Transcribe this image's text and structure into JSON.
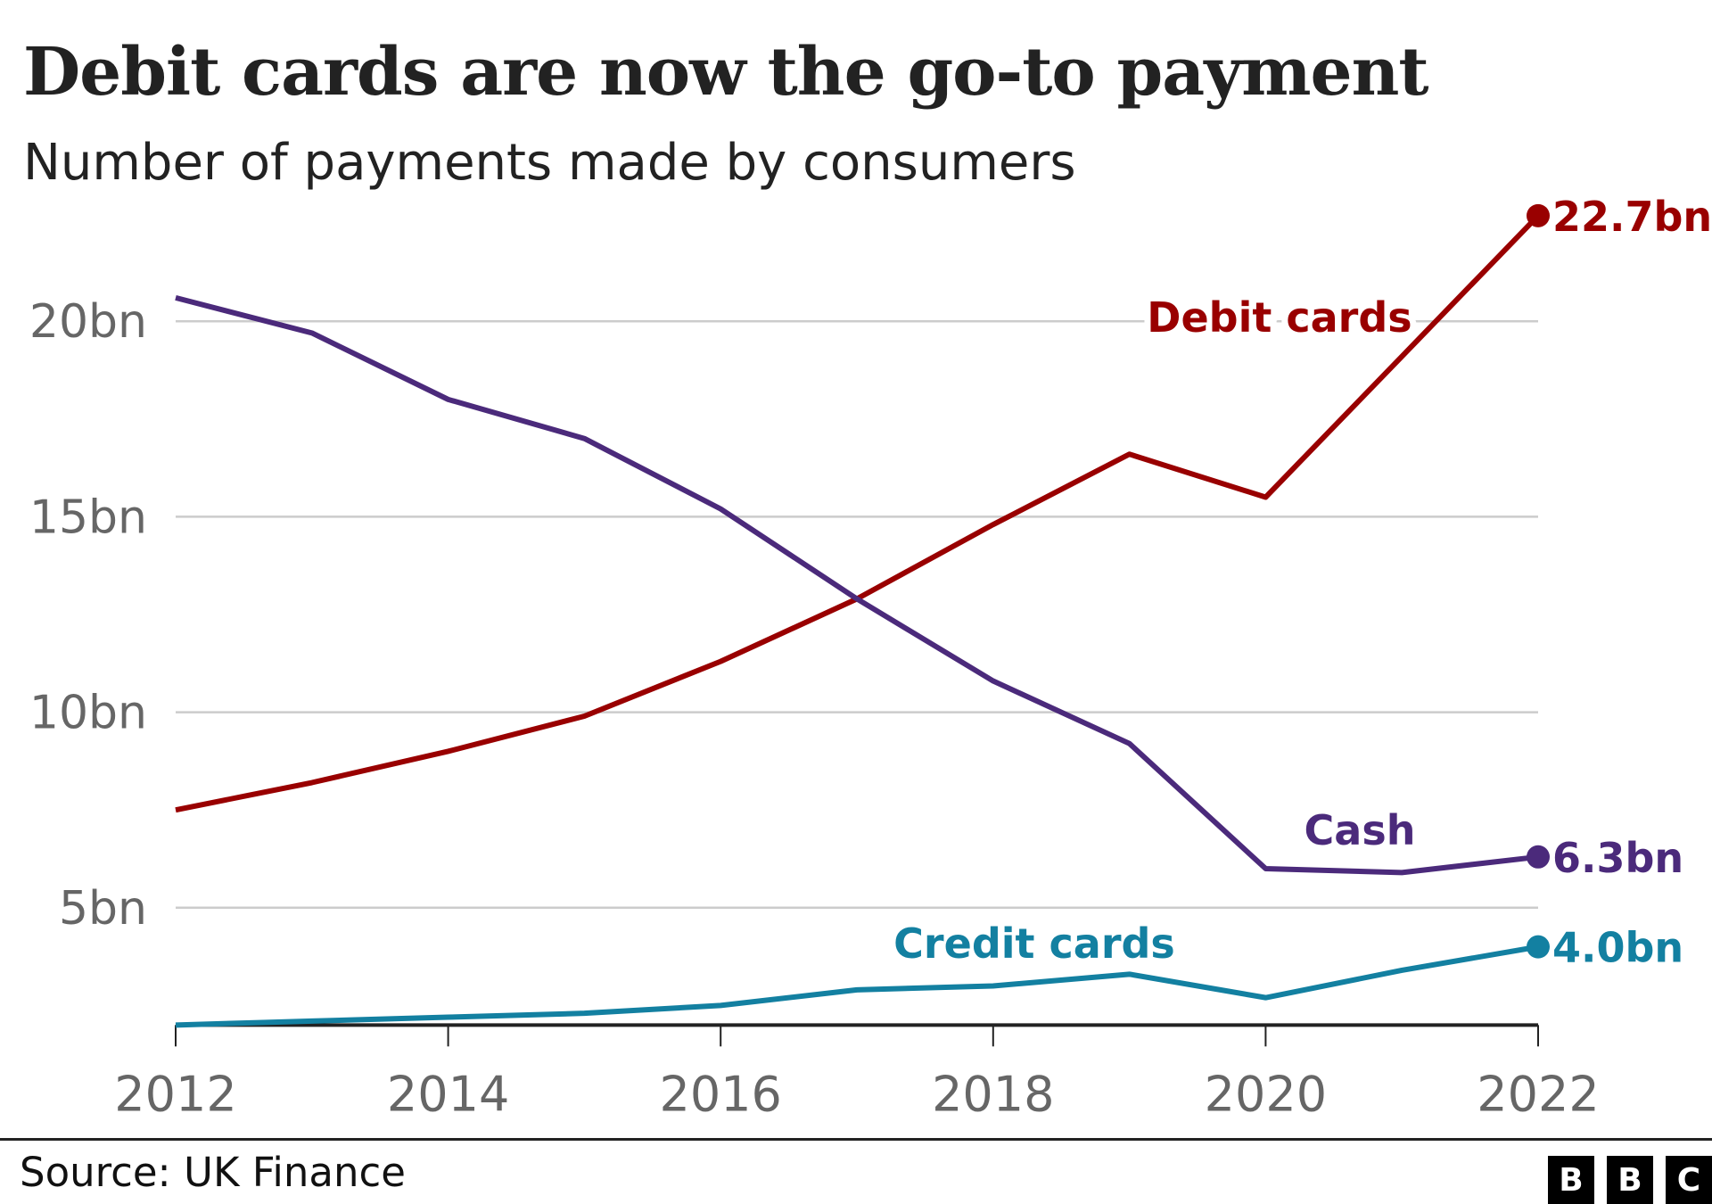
{
  "chart_data": {
    "type": "line",
    "title": "Debit cards are now the go-to payment",
    "subtitle": "Number of payments made by consumers",
    "xlabel": "",
    "ylabel": "",
    "x": [
      2012,
      2013,
      2014,
      2015,
      2016,
      2017,
      2018,
      2019,
      2020,
      2021,
      2022
    ],
    "x_ticks": [
      "2012",
      "2014",
      "2016",
      "2018",
      "2020",
      "2022"
    ],
    "x_tick_values": [
      2012,
      2014,
      2016,
      2018,
      2020,
      2022
    ],
    "y_ticks": [
      "5bn",
      "10bn",
      "15bn",
      "20bn"
    ],
    "y_tick_values": [
      5,
      10,
      15,
      20
    ],
    "ylim": [
      2,
      23
    ],
    "grid": true,
    "series": [
      {
        "name": "Debit cards",
        "color": "#990000",
        "values": [
          7.5,
          8.2,
          9.0,
          9.9,
          11.3,
          12.9,
          14.8,
          16.6,
          15.5,
          19.1,
          22.7
        ],
        "end_label": "22.7bn"
      },
      {
        "name": "Cash",
        "color": "#4b2a7b",
        "values": [
          20.6,
          19.7,
          18.0,
          17.0,
          15.2,
          12.9,
          10.8,
          9.2,
          6.0,
          5.9,
          6.3
        ],
        "end_label": "6.3bn"
      },
      {
        "name": "Credit cards",
        "color": "#1380a1",
        "values": [
          2.0,
          2.1,
          2.2,
          2.3,
          2.5,
          2.9,
          3.0,
          3.3,
          2.7,
          3.4,
          4.0
        ],
        "end_label": "4.0bn"
      }
    ]
  },
  "footer": {
    "source": "Source: UK Finance",
    "logo": [
      "B",
      "B",
      "C"
    ]
  }
}
